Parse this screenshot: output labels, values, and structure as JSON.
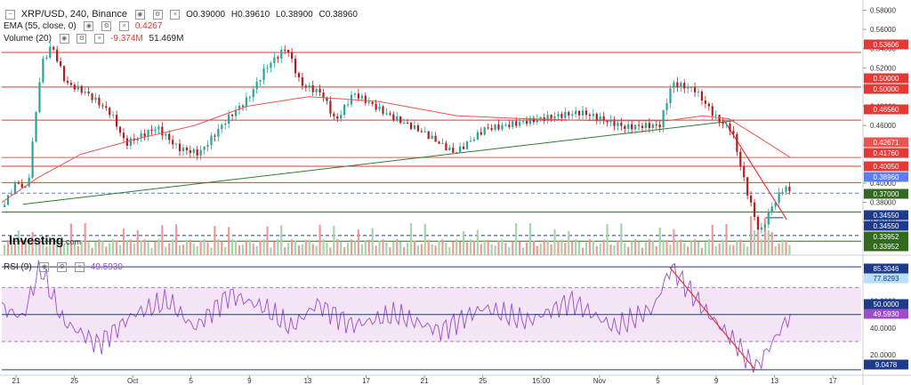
{
  "header": {
    "symbol": "XRP/USD, 240, Binance",
    "open": "O0.39000",
    "high": "H0.39610",
    "low": "L0.38900",
    "close": "C0.38960",
    "ema_label": "EMA (55, close, 0)",
    "ema_value": "0.4267",
    "volume_label": "Volume (20)",
    "volume_change": "-9.374M",
    "volume_value": "51.469M",
    "rsi_label": "RSI (9)",
    "rsi_value": "49.5930"
  },
  "brand": {
    "name": "Investing",
    "suffix": ".com"
  },
  "colors": {
    "up": "#26a69a",
    "down": "#b71c1c",
    "ema": "#ef5350",
    "resistance": "#e53935",
    "support_green": "#33691e",
    "support_blue": "#1e3a8a",
    "rsi_line": "#9c4dcc",
    "rsi_band": "#f3e5f5",
    "trendline": "#2e7d32",
    "trend_red": "#e53935"
  },
  "chart_data": [
    {
      "type": "candlestick",
      "title": "XRP/USD, 240, Binance",
      "x_ticks": [
        "21",
        "25",
        "Oct",
        "5",
        "9",
        "13",
        "17",
        "21",
        "25",
        "15:00",
        "Nov",
        "5",
        "9",
        "13",
        "17"
      ],
      "y_ticks": [
        "0.58000",
        "0.56000",
        "0.54000",
        "0.52000",
        "0.50000",
        "0.48000",
        "0.46000",
        "0.44000",
        "0.42000",
        "0.40000",
        "0.38000",
        "0.36000"
      ],
      "ylim": [
        0.325,
        0.586
      ],
      "price_path": [
        {
          "t": 0,
          "p": 0.375
        },
        {
          "t": 8,
          "p": 0.4
        },
        {
          "t": 14,
          "p": 0.39
        },
        {
          "t": 22,
          "p": 0.52
        },
        {
          "t": 28,
          "p": 0.54
        },
        {
          "t": 36,
          "p": 0.5
        },
        {
          "t": 48,
          "p": 0.49
        },
        {
          "t": 62,
          "p": 0.47
        },
        {
          "t": 70,
          "p": 0.44
        },
        {
          "t": 88,
          "p": 0.46
        },
        {
          "t": 100,
          "p": 0.44
        },
        {
          "t": 112,
          "p": 0.435
        },
        {
          "t": 128,
          "p": 0.47
        },
        {
          "t": 140,
          "p": 0.49
        },
        {
          "t": 150,
          "p": 0.52
        },
        {
          "t": 162,
          "p": 0.54
        },
        {
          "t": 170,
          "p": 0.5
        },
        {
          "t": 182,
          "p": 0.49
        },
        {
          "t": 190,
          "p": 0.46
        },
        {
          "t": 200,
          "p": 0.49
        },
        {
          "t": 220,
          "p": 0.47
        },
        {
          "t": 240,
          "p": 0.455
        },
        {
          "t": 258,
          "p": 0.435
        },
        {
          "t": 275,
          "p": 0.46
        },
        {
          "t": 300,
          "p": 0.465
        },
        {
          "t": 330,
          "p": 0.47
        },
        {
          "t": 355,
          "p": 0.455
        },
        {
          "t": 375,
          "p": 0.46
        },
        {
          "t": 382,
          "p": 0.505
        },
        {
          "t": 395,
          "p": 0.5
        },
        {
          "t": 408,
          "p": 0.47
        },
        {
          "t": 416,
          "p": 0.46
        },
        {
          "t": 424,
          "p": 0.4
        },
        {
          "t": 432,
          "p": 0.35
        },
        {
          "t": 438,
          "p": 0.375
        },
        {
          "t": 446,
          "p": 0.398
        },
        {
          "t": 450,
          "p": 0.3896
        }
      ],
      "ema_path": [
        {
          "t": 0,
          "p": 0.38
        },
        {
          "t": 20,
          "p": 0.405
        },
        {
          "t": 45,
          "p": 0.43
        },
        {
          "t": 75,
          "p": 0.445
        },
        {
          "t": 110,
          "p": 0.46
        },
        {
          "t": 140,
          "p": 0.48
        },
        {
          "t": 175,
          "p": 0.49
        },
        {
          "t": 215,
          "p": 0.485
        },
        {
          "t": 260,
          "p": 0.47
        },
        {
          "t": 300,
          "p": 0.467
        },
        {
          "t": 340,
          "p": 0.465
        },
        {
          "t": 380,
          "p": 0.465
        },
        {
          "t": 400,
          "p": 0.47
        },
        {
          "t": 415,
          "p": 0.467
        },
        {
          "t": 430,
          "p": 0.45
        },
        {
          "t": 450,
          "p": 0.4267
        }
      ],
      "levels": [
        {
          "value": 0.53606,
          "label": "0.53606",
          "style": "resistance"
        },
        {
          "value": 0.5,
          "label": "0.50000",
          "style": "resistance"
        },
        {
          "value": 0.5,
          "label": "0.50000",
          "style": "resistance"
        },
        {
          "value": 0.4656,
          "label": "0.46560",
          "style": "resistance"
        },
        {
          "value": 0.42671,
          "label": "0.42671",
          "style": "ema"
        },
        {
          "value": 0.4176,
          "label": "0.41760",
          "style": "resistance"
        },
        {
          "value": 0.4005,
          "label": "0.40050",
          "style": "resistance"
        },
        {
          "value": 0.3896,
          "label": "0.38960",
          "style": "current"
        },
        {
          "value": 0.37,
          "label": "0.37000",
          "style": "support_green"
        },
        {
          "value": 0.3455,
          "label": "0.34550",
          "style": "support_blue"
        },
        {
          "value": 0.3455,
          "label": "0.34550",
          "style": "support_blue"
        },
        {
          "value": 0.33952,
          "label": "0.33952",
          "style": "support_green"
        },
        {
          "value": 0.33952,
          "label": "0.33952",
          "style": "support_green"
        }
      ],
      "legend": "top-left",
      "grid": false
    },
    {
      "type": "line",
      "title": "RSI (9)",
      "y_ticks": [
        "60.0000",
        "40.0000",
        "20.0000"
      ],
      "ylim": [
        5,
        92
      ],
      "overbought": 70,
      "oversold": 30,
      "levels": [
        {
          "value": 85.3046,
          "label": "85.3046",
          "style": "support_blue"
        },
        {
          "value": 77.8293,
          "label": "77.8293",
          "style": "light_blue"
        },
        {
          "value": 50.0,
          "label": "50.0000",
          "style": "support_blue"
        },
        {
          "value": 49.593,
          "label": "49.5930",
          "style": "rsi"
        },
        {
          "value": 9.0478,
          "label": "9.0478",
          "style": "support_blue"
        }
      ],
      "rsi_path": [
        {
          "t": 0,
          "p": 55
        },
        {
          "t": 12,
          "p": 48
        },
        {
          "t": 22,
          "p": 85
        },
        {
          "t": 35,
          "p": 45
        },
        {
          "t": 55,
          "p": 28
        },
        {
          "t": 75,
          "p": 50
        },
        {
          "t": 95,
          "p": 60
        },
        {
          "t": 110,
          "p": 40
        },
        {
          "t": 130,
          "p": 65
        },
        {
          "t": 150,
          "p": 55
        },
        {
          "t": 165,
          "p": 40
        },
        {
          "t": 180,
          "p": 58
        },
        {
          "t": 200,
          "p": 42
        },
        {
          "t": 225,
          "p": 50
        },
        {
          "t": 250,
          "p": 38
        },
        {
          "t": 275,
          "p": 55
        },
        {
          "t": 300,
          "p": 45
        },
        {
          "t": 325,
          "p": 60
        },
        {
          "t": 350,
          "p": 40
        },
        {
          "t": 372,
          "p": 55
        },
        {
          "t": 382,
          "p": 85.3
        },
        {
          "t": 400,
          "p": 55
        },
        {
          "t": 418,
          "p": 30
        },
        {
          "t": 430,
          "p": 9.05
        },
        {
          "t": 440,
          "p": 30
        },
        {
          "t": 450,
          "p": 49.59
        }
      ]
    }
  ]
}
